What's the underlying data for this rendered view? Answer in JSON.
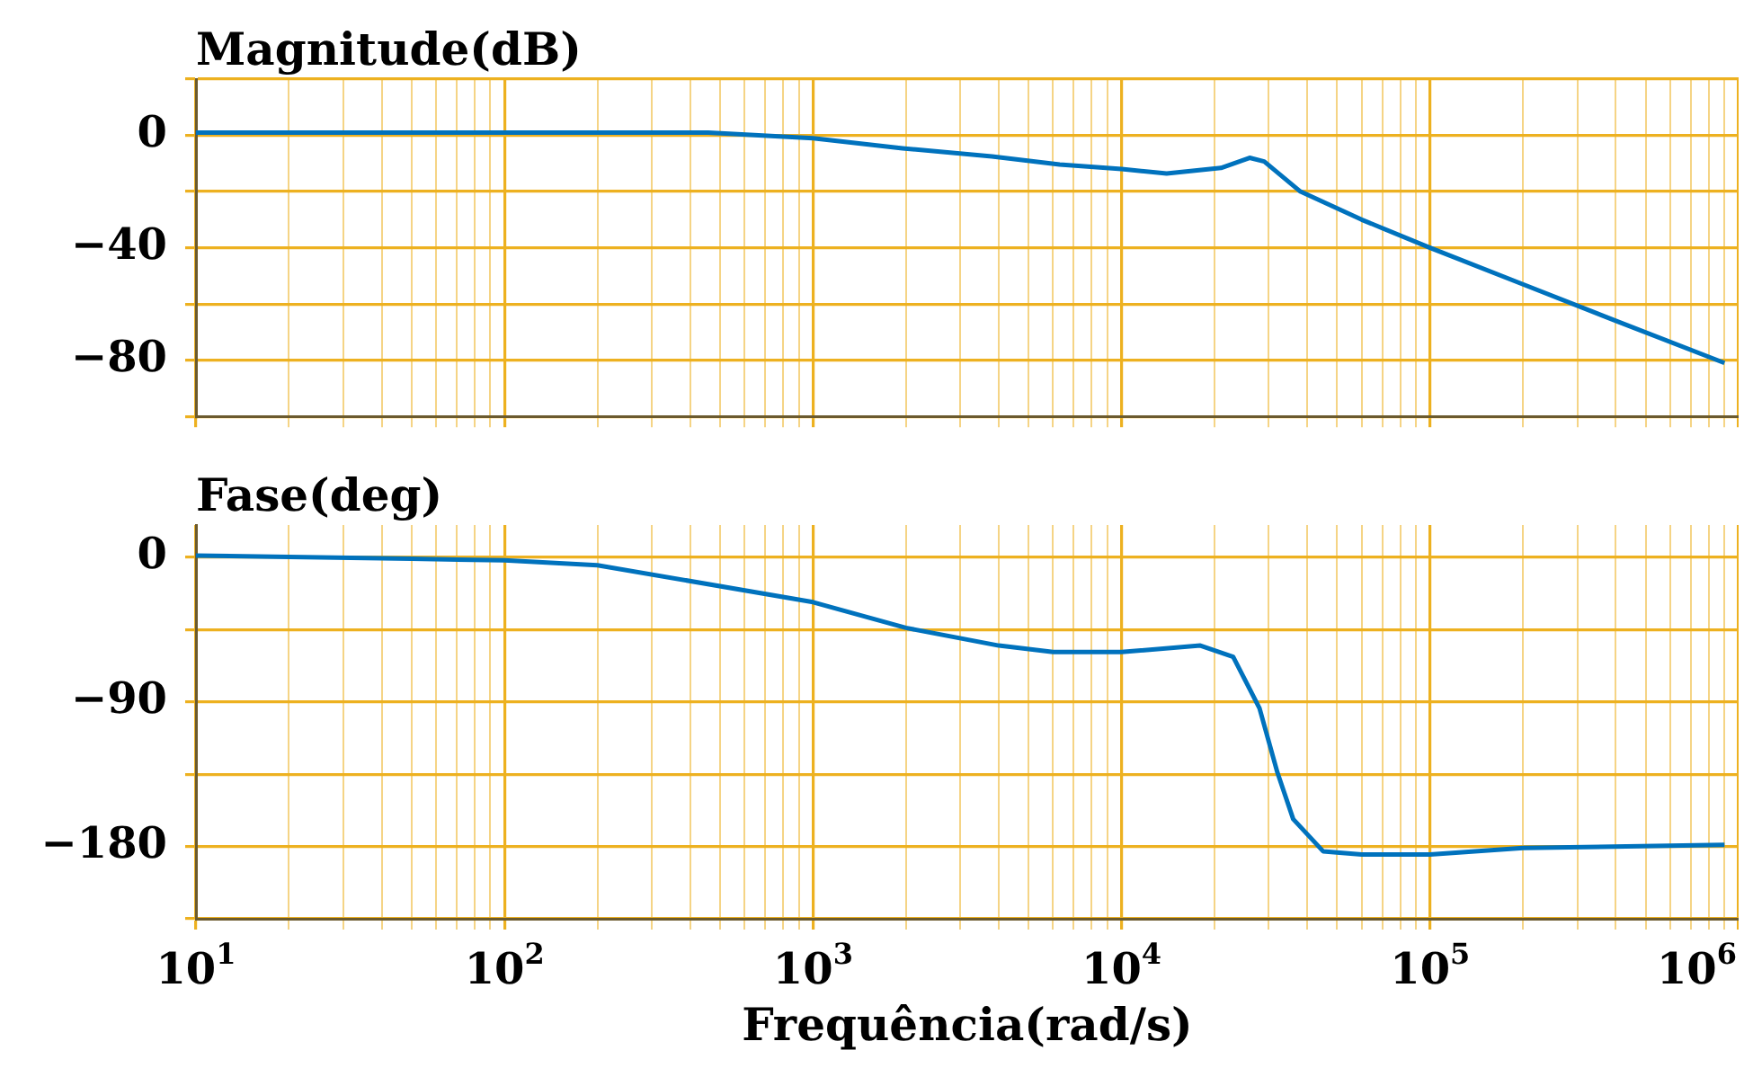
{
  "chart_data": [
    {
      "type": "line",
      "title": "Magnitude(dB)",
      "tick_labels": "y",
      "grid": true,
      "log": "x",
      "line_style": "solid",
      "marker": "none",
      "x": [
        10,
        100,
        457,
        1000,
        1950,
        3800,
        6300,
        10000,
        14000,
        21000,
        26000,
        29000,
        38000,
        60000,
        100000,
        200000,
        400000,
        900000
      ],
      "series": [
        {
          "color": "#0072bd",
          "values": [
            1,
            1,
            1,
            -1,
            -4.6,
            -7.5,
            -10.4,
            -12,
            -13.6,
            -11.6,
            -8,
            -9.3,
            -20,
            -30,
            -40,
            -53,
            -66,
            -81
          ]
        }
      ],
      "xlim": [
        10,
        1000000
      ],
      "xticks": [
        {
          "value": 10,
          "label": null
        },
        {
          "value": 20,
          "label": null
        },
        {
          "value": 30,
          "label": null
        },
        {
          "value": 40,
          "label": null
        },
        {
          "value": 50,
          "label": null
        },
        {
          "value": 60,
          "label": null
        },
        {
          "value": 70,
          "label": null
        },
        {
          "value": 80,
          "label": null
        },
        {
          "value": 90,
          "label": null
        },
        {
          "value": 100,
          "label": null
        },
        {
          "value": 200,
          "label": null
        },
        {
          "value": 300,
          "label": null
        },
        {
          "value": 400,
          "label": null
        },
        {
          "value": 500,
          "label": null
        },
        {
          "value": 600,
          "label": null
        },
        {
          "value": 700,
          "label": null
        },
        {
          "value": 800,
          "label": null
        },
        {
          "value": 900,
          "label": null
        },
        {
          "value": 1000,
          "label": null
        },
        {
          "value": 2000,
          "label": null
        },
        {
          "value": 3000,
          "label": null
        },
        {
          "value": 4000,
          "label": null
        },
        {
          "value": 5000,
          "label": null
        },
        {
          "value": 6000,
          "label": null
        },
        {
          "value": 7000,
          "label": null
        },
        {
          "value": 8000,
          "label": null
        },
        {
          "value": 9000,
          "label": null
        },
        {
          "value": 10000,
          "label": null
        },
        {
          "value": 20000,
          "label": null
        },
        {
          "value": 30000,
          "label": null
        },
        {
          "value": 40000,
          "label": null
        },
        {
          "value": 50000,
          "label": null
        },
        {
          "value": 60000,
          "label": null
        },
        {
          "value": 70000,
          "label": null
        },
        {
          "value": 80000,
          "label": null
        },
        {
          "value": 90000,
          "label": null
        },
        {
          "value": 100000,
          "label": null
        },
        {
          "value": 200000,
          "label": null
        },
        {
          "value": 300000,
          "label": null
        },
        {
          "value": 400000,
          "label": null
        },
        {
          "value": 500000,
          "label": null
        },
        {
          "value": 600000,
          "label": null
        },
        {
          "value": 700000,
          "label": null
        },
        {
          "value": 800000,
          "label": null
        },
        {
          "value": 900000,
          "label": null
        },
        {
          "value": 1000000,
          "label": null
        }
      ],
      "ylim": [
        -100,
        20
      ],
      "yticks": [
        {
          "value": -100,
          "label": null
        },
        {
          "value": -80,
          "label": "−80"
        },
        {
          "value": -60,
          "label": null
        },
        {
          "value": -40,
          "label": "−40"
        },
        {
          "value": -20,
          "label": null
        },
        0,
        {
          "value": 20,
          "label": null
        }
      ]
    },
    {
      "type": "line",
      "title": "Fase(deg)",
      "xlabel": "Frequência(rad/s)",
      "grid": true,
      "log": "x",
      "line_style": "solid",
      "marker": "none",
      "x": [
        10,
        50,
        100,
        200,
        1000,
        2000,
        4000,
        6000,
        10000,
        18000,
        23000,
        28000,
        32000,
        36000,
        45000,
        60000,
        100000,
        200000,
        900000
      ],
      "series": [
        {
          "color": "#0072bd",
          "values": [
            1,
            -1,
            -2,
            -5,
            -28,
            -44,
            -55,
            -59,
            -59,
            -55,
            -62,
            -94,
            -134,
            -163,
            -183,
            -185,
            -185,
            -181,
            -179
          ]
        }
      ],
      "xlim": [
        10,
        1000000
      ],
      "xticks": [
        {
          "value": 10,
          "label": "10$^{1}$"
        },
        {
          "value": 20,
          "label": null
        },
        {
          "value": 30,
          "label": null
        },
        {
          "value": 40,
          "label": null
        },
        {
          "value": 50,
          "label": null
        },
        {
          "value": 60,
          "label": null
        },
        {
          "value": 70,
          "label": null
        },
        {
          "value": 80,
          "label": null
        },
        {
          "value": 90,
          "label": null
        },
        {
          "value": 100,
          "label": "10$^{2}$"
        },
        {
          "value": 200,
          "label": null
        },
        {
          "value": 300,
          "label": null
        },
        {
          "value": 400,
          "label": null
        },
        {
          "value": 500,
          "label": null
        },
        {
          "value": 600,
          "label": null
        },
        {
          "value": 700,
          "label": null
        },
        {
          "value": 800,
          "label": null
        },
        {
          "value": 900,
          "label": null
        },
        {
          "value": 1000,
          "label": "10$^{3}$"
        },
        {
          "value": 2000,
          "label": null
        },
        {
          "value": 3000,
          "label": null
        },
        {
          "value": 4000,
          "label": null
        },
        {
          "value": 5000,
          "label": null
        },
        {
          "value": 6000,
          "label": null
        },
        {
          "value": 7000,
          "label": null
        },
        {
          "value": 8000,
          "label": null
        },
        {
          "value": 9000,
          "label": null
        },
        {
          "value": 10000,
          "label": "10$^{4}$"
        },
        {
          "value": 20000,
          "label": null
        },
        {
          "value": 30000,
          "label": null
        },
        {
          "value": 40000,
          "label": null
        },
        {
          "value": 50000,
          "label": null
        },
        {
          "value": 60000,
          "label": null
        },
        {
          "value": 70000,
          "label": null
        },
        {
          "value": 80000,
          "label": null
        },
        {
          "value": 90000,
          "label": null
        },
        {
          "value": 100000,
          "label": "10$^{5}$"
        },
        {
          "value": 200000,
          "label": null
        },
        {
          "value": 300000,
          "label": null
        },
        {
          "value": 400000,
          "label": null
        },
        {
          "value": 500000,
          "label": null
        },
        {
          "value": 600000,
          "label": null
        },
        {
          "value": 700000,
          "label": null
        },
        {
          "value": 800000,
          "label": null
        },
        {
          "value": 900000,
          "label": null
        },
        {
          "value": 1000000,
          "label": "10$^{6}$"
        }
      ],
      "ylim": [
        -225,
        20
      ],
      "yticks": [
        {
          "value": -225,
          "label": null
        },
        {
          "value": -180,
          "label": "−180"
        },
        {
          "value": -135,
          "label": null
        },
        {
          "value": -90,
          "label": "−90"
        },
        {
          "value": -45,
          "label": null
        },
        0
      ]
    }
  ]
}
